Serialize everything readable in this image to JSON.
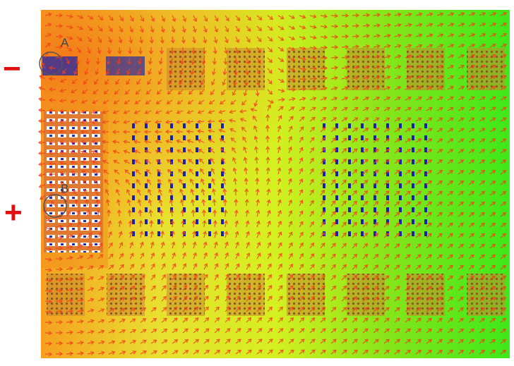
{
  "labels": {
    "a": "A",
    "b": "B",
    "minus": "−",
    "plus": "+"
  }
}
